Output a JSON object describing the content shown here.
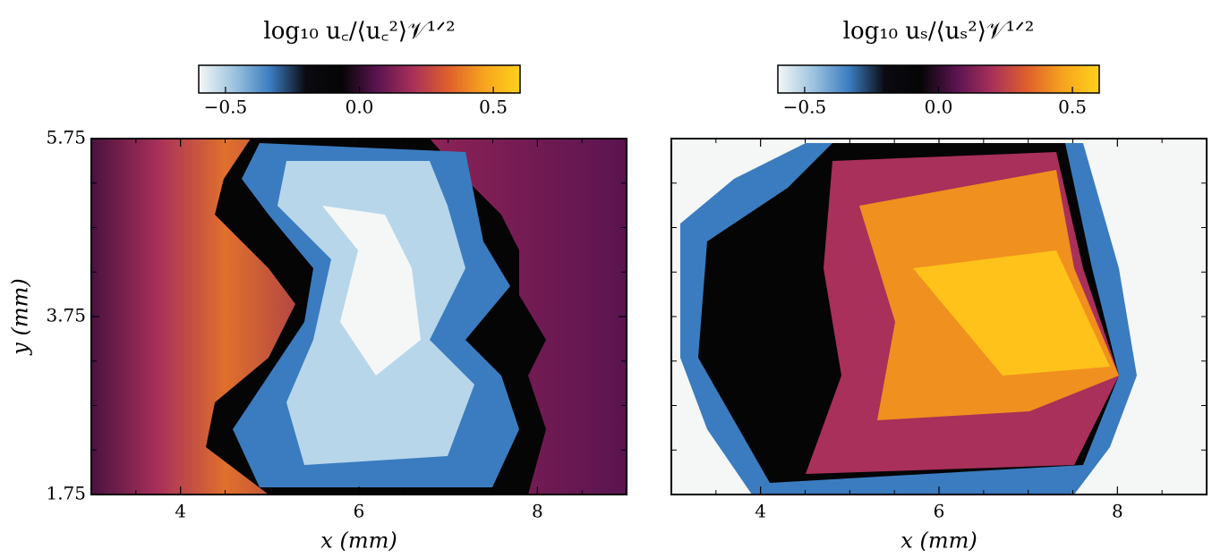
{
  "chart_data": [
    {
      "type": "heatmap",
      "title": "log₁₀  u꜀/⟨u꜀²⟩𝒱¹ᐟ²",
      "colorbar_lim": [
        -0.6,
        0.6
      ],
      "colorbar_ticks": [
        {
          "value": -0.5,
          "label": "−0.5"
        },
        {
          "value": 0,
          "label": "0.0"
        },
        {
          "value": 0.5,
          "label": "0.5"
        }
      ],
      "colormap": [
        "#f4f7f6",
        "#9cc3df",
        "#3b7cc0",
        "#0a0a10",
        "#050505",
        "#5a1450",
        "#a8305a",
        "#e0602c",
        "#f7a41e",
        "#ffd21a"
      ],
      "xlim": [
        3,
        9
      ],
      "xticks": [
        4,
        6,
        8
      ],
      "xminor": [
        3.5,
        4.5,
        5,
        5.5,
        6.5,
        7,
        7.5,
        8.5
      ],
      "ylim": [
        1.75,
        5.75
      ],
      "yticks": [
        1.75,
        3.75,
        5.75
      ],
      "yminor": [
        2.25,
        2.75,
        3.25,
        4.25,
        4.75,
        5.25
      ],
      "xlabel": "x (mm)",
      "ylabel": "y (mm)"
    },
    {
      "type": "heatmap",
      "title": "log₁₀  uₛ/⟨uₛ²⟩𝒱¹ᐟ²",
      "colorbar_lim": [
        -0.6,
        0.6
      ],
      "colorbar_ticks": [
        {
          "value": -0.5,
          "label": "−0.5"
        },
        {
          "value": 0,
          "label": "0.0"
        },
        {
          "value": 0.5,
          "label": "0.5"
        }
      ],
      "colormap": [
        "#f4f7f6",
        "#9cc3df",
        "#3b7cc0",
        "#0a0a10",
        "#050505",
        "#5a1450",
        "#a8305a",
        "#e0602c",
        "#f7a41e",
        "#ffd21a"
      ],
      "xlim": [
        3,
        9
      ],
      "xticks": [
        4,
        6,
        8
      ],
      "xminor": [
        3.5,
        4.5,
        5,
        5.5,
        6.5,
        7,
        7.5,
        8.5
      ],
      "ylim": [
        1.75,
        5.75
      ],
      "yminor": [
        2.25,
        2.75,
        3.25,
        3.75,
        4.25,
        4.75,
        5.25
      ],
      "xlabel": "x (mm)"
    }
  ]
}
